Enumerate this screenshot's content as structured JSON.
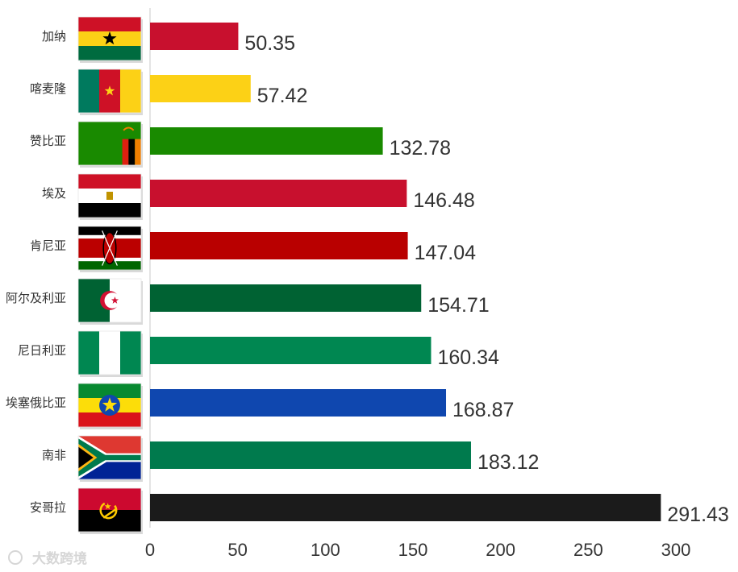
{
  "chart_data": {
    "type": "bar",
    "orientation": "horizontal",
    "categories": [
      "加纳",
      "喀麦隆",
      "赞比亚",
      "埃及",
      "肯尼亚",
      "阿尔及利亚",
      "尼日利亚",
      "埃塞俄比亚",
      "南非",
      "安哥拉"
    ],
    "values": [
      50.35,
      57.42,
      132.78,
      146.48,
      147.04,
      154.71,
      160.34,
      168.87,
      183.12,
      291.43
    ],
    "value_labels": [
      "50.35",
      "57.42",
      "132.78",
      "146.48",
      "147.04",
      "154.71",
      "160.34",
      "168.87",
      "183.12",
      "291.43"
    ],
    "bar_colors": [
      "#c8102e",
      "#fcd116",
      "#198a00",
      "#c8102e",
      "#b90000",
      "#006233",
      "#008751",
      "#0f47af",
      "#007a4d",
      "#1b1b1b"
    ],
    "xlim": [
      0,
      300
    ],
    "xticks": [
      0,
      50,
      100,
      150,
      200,
      250,
      300
    ],
    "xtick_labels": [
      "0",
      "50",
      "100",
      "150",
      "200",
      "250",
      "300"
    ],
    "grid": false,
    "flags": [
      "ghana-flag-icon",
      "cameroon-flag-icon",
      "zambia-flag-icon",
      "egypt-flag-icon",
      "kenya-flag-icon",
      "algeria-flag-icon",
      "nigeria-flag-icon",
      "ethiopia-flag-icon",
      "south-africa-flag-icon",
      "angola-flag-icon"
    ]
  },
  "watermark": {
    "text": "大数跨境"
  }
}
